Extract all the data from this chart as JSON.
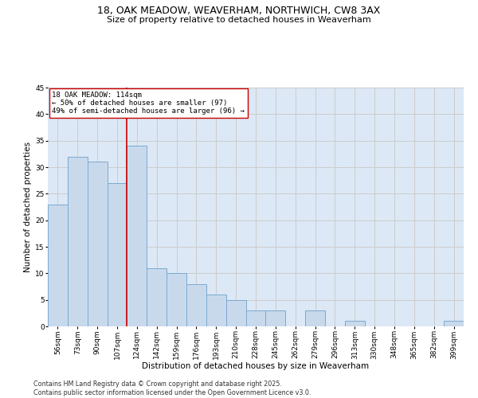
{
  "title_line1": "18, OAK MEADOW, WEAVERHAM, NORTHWICH, CW8 3AX",
  "title_line2": "Size of property relative to detached houses in Weaverham",
  "xlabel": "Distribution of detached houses by size in Weaverham",
  "ylabel": "Number of detached properties",
  "categories": [
    "56sqm",
    "73sqm",
    "90sqm",
    "107sqm",
    "124sqm",
    "142sqm",
    "159sqm",
    "176sqm",
    "193sqm",
    "210sqm",
    "228sqm",
    "245sqm",
    "262sqm",
    "279sqm",
    "296sqm",
    "313sqm",
    "330sqm",
    "348sqm",
    "365sqm",
    "382sqm",
    "399sqm"
  ],
  "values": [
    23,
    32,
    31,
    27,
    34,
    11,
    10,
    8,
    6,
    5,
    3,
    3,
    0,
    3,
    0,
    1,
    0,
    0,
    0,
    0,
    1
  ],
  "bar_color": "#c9d9ec",
  "bar_edge_color": "#7aaad0",
  "vline_x": 3.5,
  "vline_color": "#cc0000",
  "annotation_text": "18 OAK MEADOW: 114sqm\n← 50% of detached houses are smaller (97)\n49% of semi-detached houses are larger (96) →",
  "annotation_box_color": "#ffffff",
  "annotation_box_edge": "#cc0000",
  "annotation_fontsize": 6.5,
  "ylim": [
    0,
    45
  ],
  "yticks": [
    0,
    5,
    10,
    15,
    20,
    25,
    30,
    35,
    40,
    45
  ],
  "grid_color": "#cccccc",
  "bg_color": "#dce8f5",
  "footer_line1": "Contains HM Land Registry data © Crown copyright and database right 2025.",
  "footer_line2": "Contains public sector information licensed under the Open Government Licence v3.0.",
  "title_fontsize": 9,
  "subtitle_fontsize": 8,
  "axis_label_fontsize": 7.5,
  "tick_fontsize": 6.5,
  "footer_fontsize": 5.8
}
